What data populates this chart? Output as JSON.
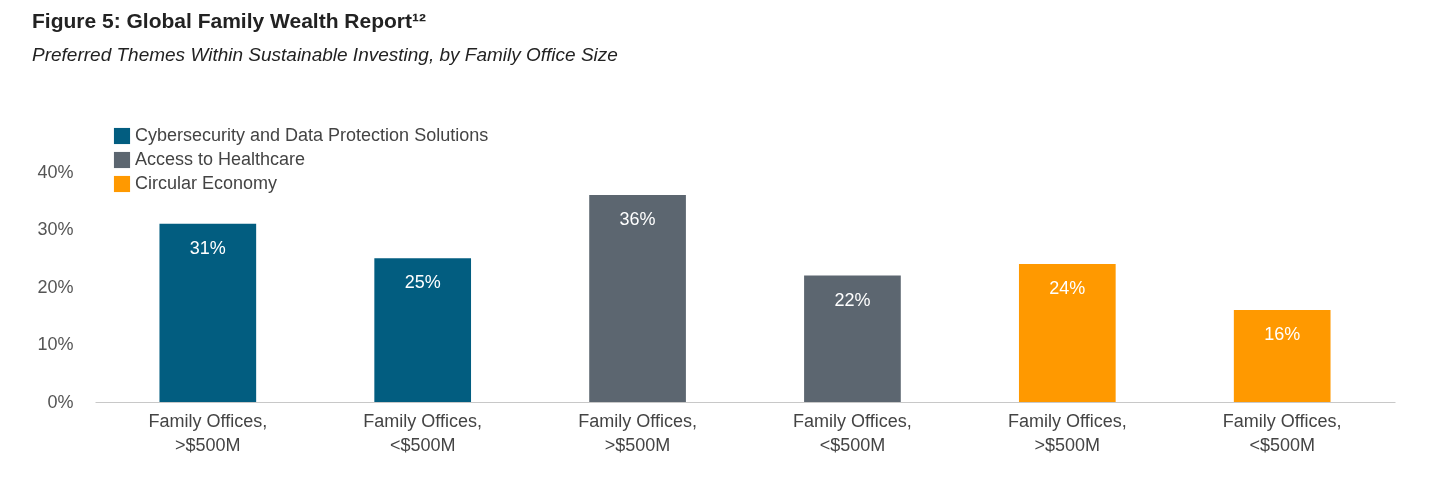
{
  "chart_data": {
    "type": "bar",
    "title": "Figure 5: Global Family Wealth Report¹²",
    "subtitle": "Preferred Themes Within Sustainable Investing, by Family Office Size",
    "categories": [
      "Family Offices, >$500M",
      "Family Offices, <$500M",
      "Family Offices, >$500M",
      "Family Offices, <$500M",
      "Family Offices, >$500M",
      "Family Offices, <$500M"
    ],
    "series": [
      {
        "name": "Cybersecurity and Data Protection Solutions",
        "color": "#025d80",
        "values": [
          31,
          25,
          null,
          null,
          null,
          null
        ],
        "value_labels": [
          "31%",
          "25%",
          null,
          null,
          null,
          null
        ]
      },
      {
        "name": "Access to Healthcare",
        "color": "#5c6670",
        "values": [
          null,
          null,
          36,
          22,
          null,
          null
        ],
        "value_labels": [
          null,
          null,
          "36%",
          "22%",
          null,
          null
        ]
      },
      {
        "name": "Circular Economy",
        "color": "#ff9900",
        "values": [
          null,
          null,
          null,
          null,
          24,
          16
        ],
        "value_labels": [
          null,
          null,
          null,
          null,
          "24%",
          "16%"
        ]
      }
    ],
    "ylim": [
      0,
      40
    ],
    "yticks": [
      {
        "value": 0,
        "label": "0%"
      },
      {
        "value": 10,
        "label": "10%"
      },
      {
        "value": 20,
        "label": "20%"
      },
      {
        "value": 30,
        "label": "30%"
      },
      {
        "value": 40,
        "label": "40%"
      }
    ],
    "grid": false,
    "legend": "top left"
  }
}
